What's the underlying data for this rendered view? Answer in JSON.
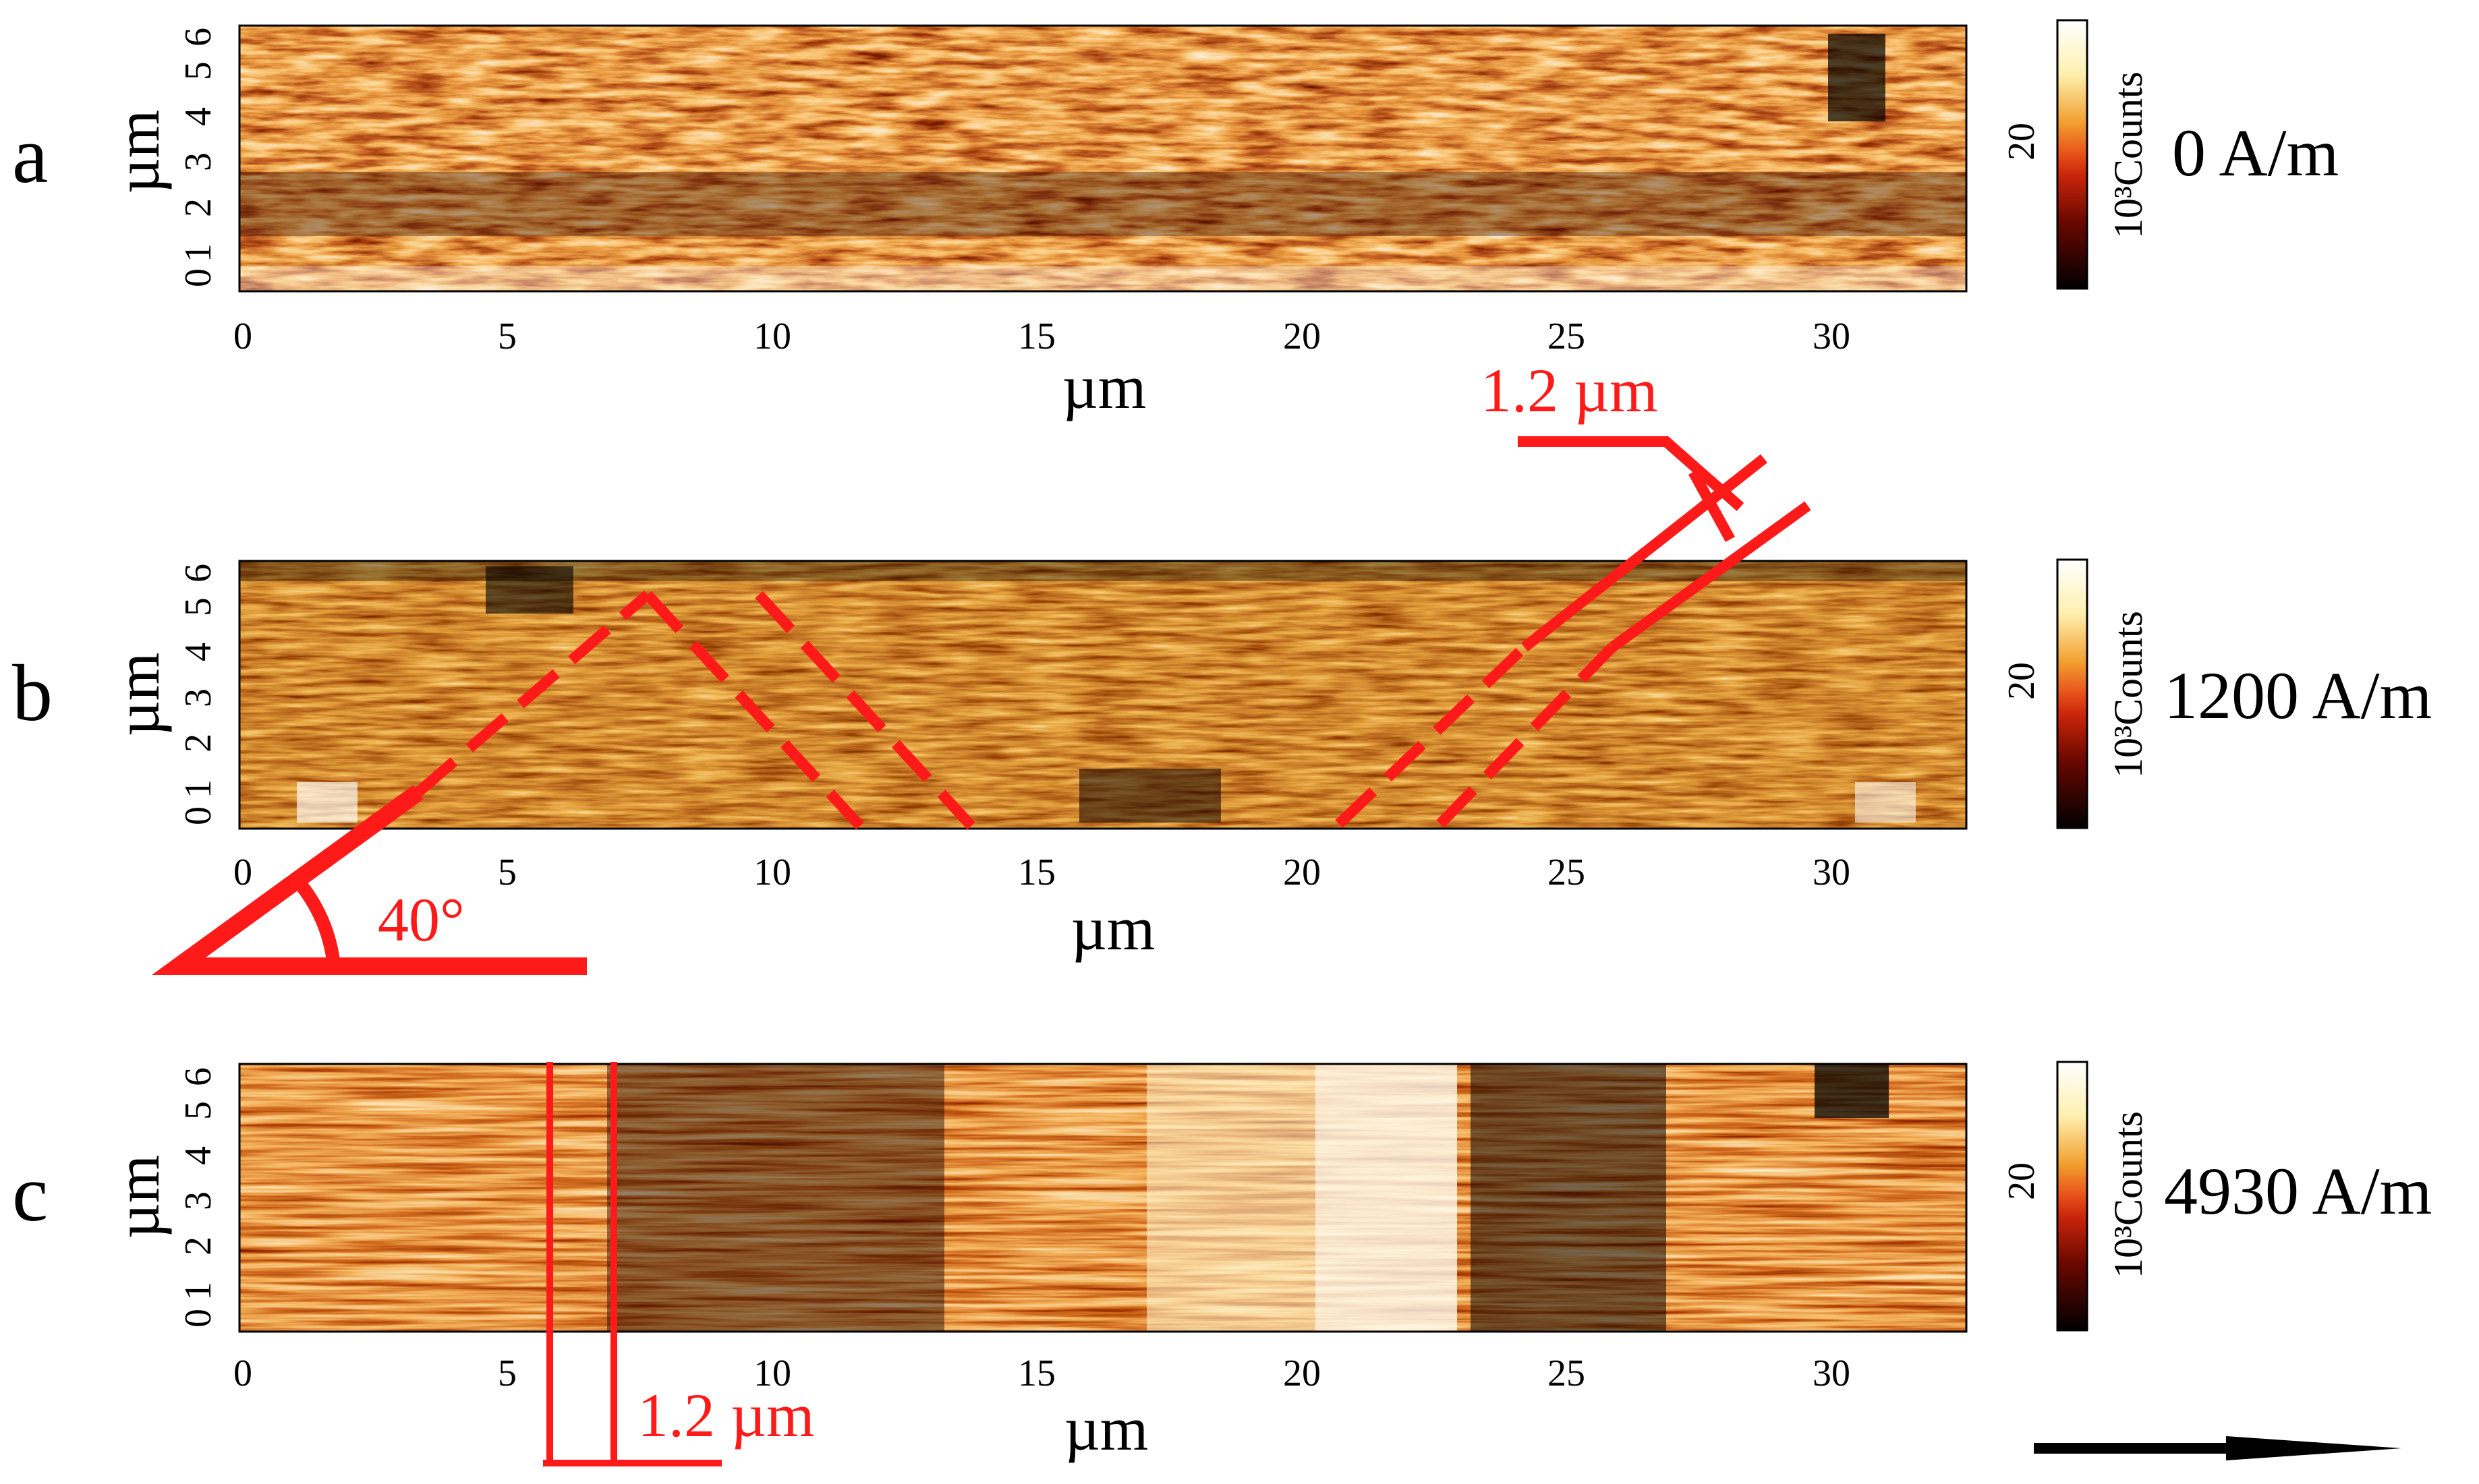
{
  "panels": [
    {
      "label": "a",
      "field": "0 A/m",
      "xlabel": "µm",
      "ylabel": "µm",
      "xticks": [
        "0",
        "5",
        "10",
        "15",
        "20",
        "25",
        "30"
      ],
      "yticks": [
        "0",
        "1",
        "2",
        "3",
        "4",
        "5",
        "6"
      ],
      "colorbar_tick": "20",
      "colorbar_label": "10³Counts"
    },
    {
      "label": "b",
      "field": "1200 A/m",
      "xlabel": "µm",
      "ylabel": "µm",
      "xticks": [
        "0",
        "5",
        "10",
        "15",
        "20",
        "25",
        "30"
      ],
      "yticks": [
        "0",
        "1",
        "2",
        "3",
        "4",
        "5",
        "6"
      ],
      "colorbar_tick": "20",
      "colorbar_label": "10³Counts"
    },
    {
      "label": "c",
      "field": "4930 A/m",
      "xlabel": "µm",
      "ylabel": "µm",
      "xticks": [
        "0",
        "5",
        "10",
        "15",
        "20",
        "25",
        "30"
      ],
      "yticks": [
        "0",
        "1",
        "2",
        "3",
        "4",
        "5",
        "6"
      ],
      "colorbar_tick": "20",
      "colorbar_label": "10³Counts"
    }
  ],
  "annotations": {
    "period_b": "1.2 µm",
    "angle_b": "40°",
    "period_c": "1.2 µm"
  },
  "colors": {
    "annotation": "#ff1a1a",
    "arrow": "#000000",
    "colormap": [
      "#000000",
      "#3a0000",
      "#7a0a00",
      "#b83000",
      "#e06a10",
      "#f5b040",
      "#fff2c0",
      "#ffffff"
    ]
  }
}
